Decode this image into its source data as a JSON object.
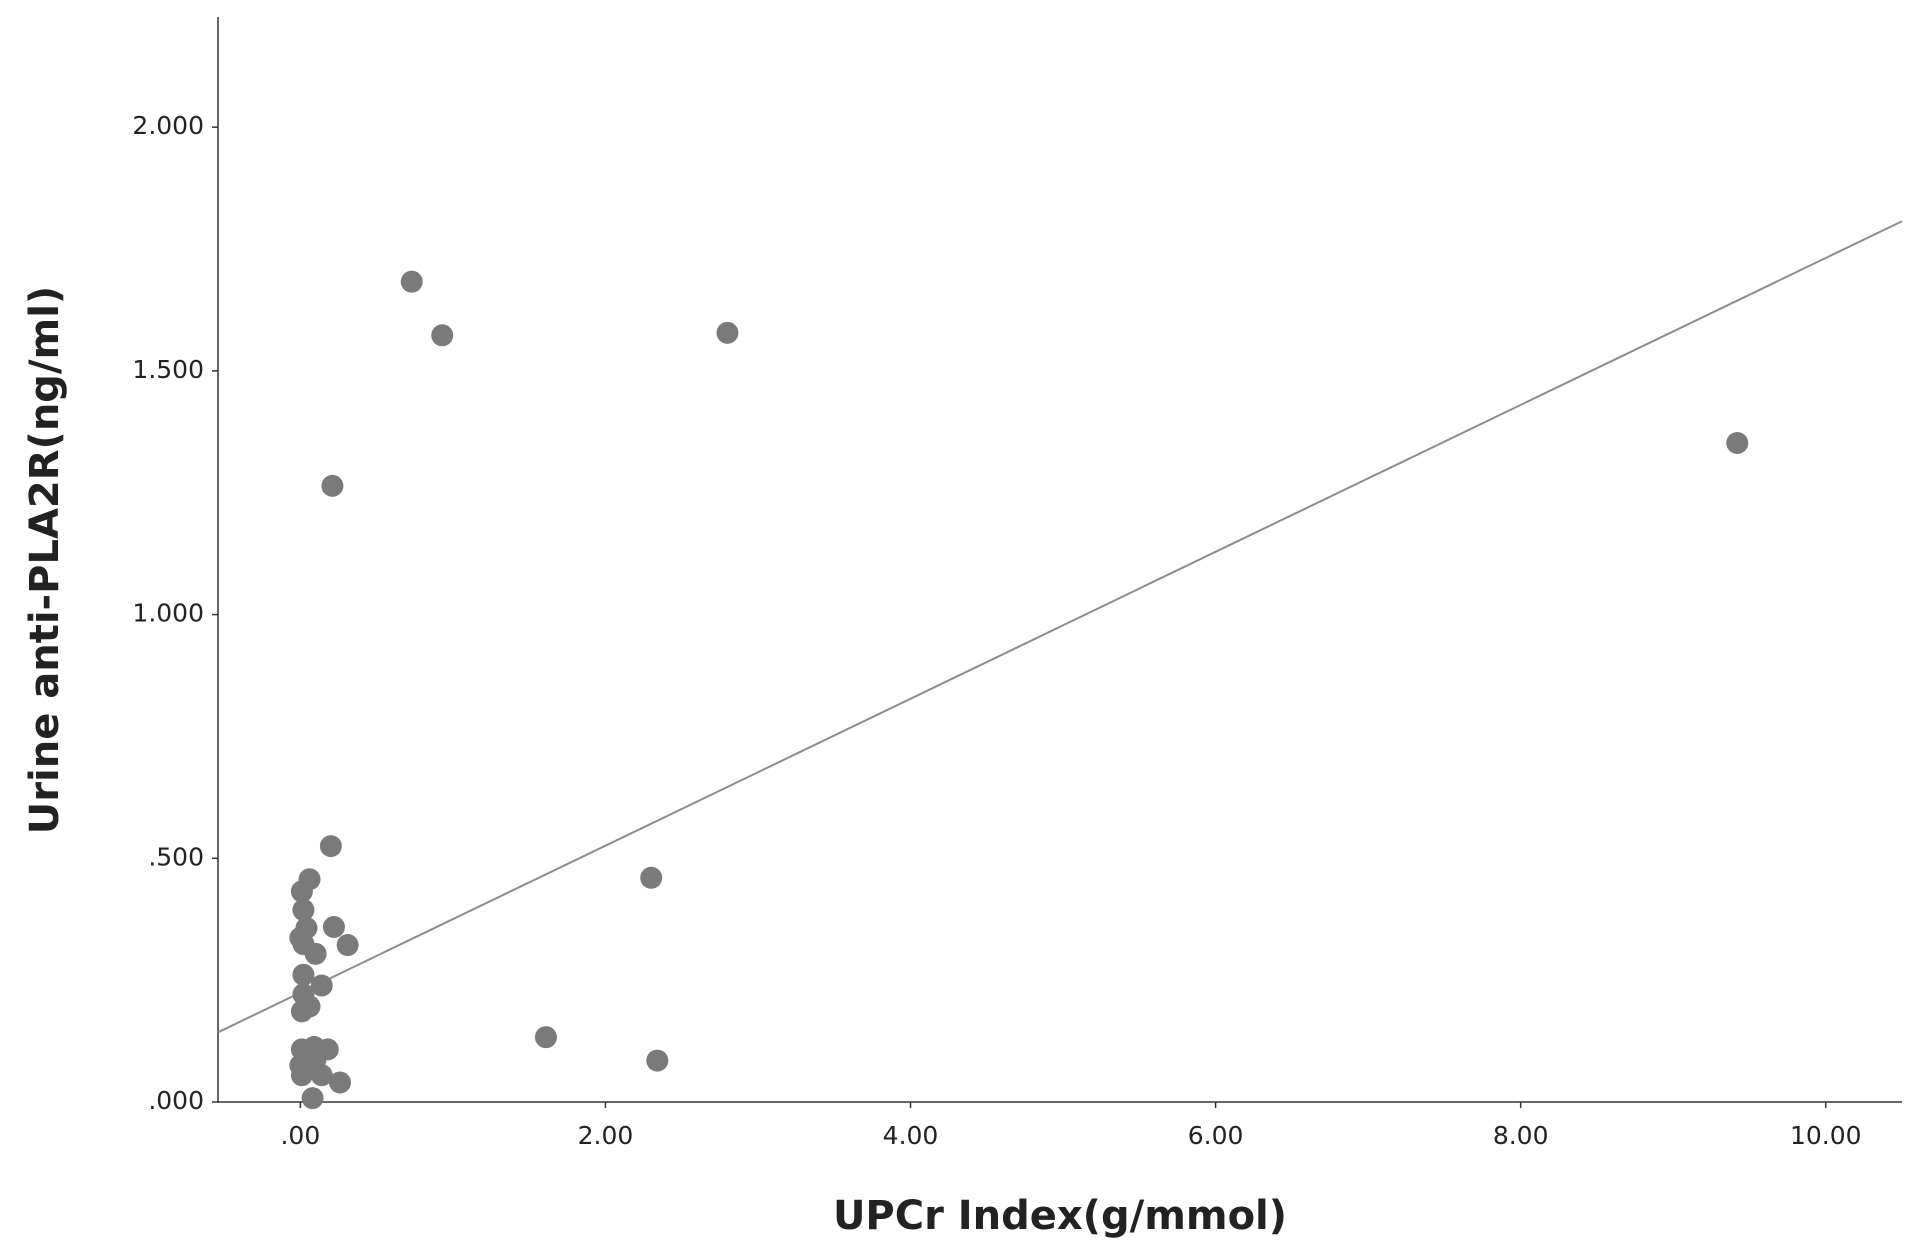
{
  "chart_data": {
    "type": "scatter",
    "x_label": "UPCr Index(g/mmol)",
    "y_label": "Urine anti-PLA2R(ng/ml)",
    "color": "#7a7a7a",
    "fit_color": "#8c8c8c",
    "x": [
      0.73,
      0.93,
      2.8,
      9.42,
      0.21,
      0.2,
      2.3,
      1.61,
      2.34,
      0.06,
      0.01,
      0.02,
      0.22,
      0.04,
      0.31,
      0.0,
      0.1,
      0.02,
      0.14,
      0.02,
      0.02,
      0.06,
      0.01,
      0.18,
      0.09,
      0.01,
      0.04,
      0.01,
      0.14,
      0.26,
      0.08,
      0.1,
      0.0
    ],
    "values": [
      1.683,
      1.573,
      1.578,
      1.352,
      1.264,
      0.525,
      0.46,
      0.133,
      0.085,
      0.457,
      0.432,
      0.394,
      0.359,
      0.357,
      0.322,
      0.337,
      0.304,
      0.324,
      0.239,
      0.261,
      0.221,
      0.196,
      0.186,
      0.108,
      0.113,
      0.108,
      0.08,
      0.055,
      0.055,
      0.04,
      0.008,
      0.088,
      0.075
    ],
    "fit_line": {
      "x": [
        -0.54,
        10.5
      ],
      "values": [
        0.143,
        1.807
      ]
    },
    "xlim": [
      -0.54,
      10.5
    ],
    "ylim": [
      0,
      2.226
    ],
    "xticks": [
      {
        "value": 0,
        "label": ".00"
      },
      {
        "value": 2,
        "label": "2.00"
      },
      {
        "value": 4,
        "label": "4.00"
      },
      {
        "value": 6,
        "label": "6.00"
      },
      {
        "value": 8,
        "label": "8.00"
      },
      {
        "value": 10,
        "label": "10.00"
      }
    ],
    "yticks": [
      {
        "value": 0,
        "label": ".000"
      },
      {
        "value": 0.5,
        "label": ".500"
      },
      {
        "value": 1,
        "label": "1.000"
      },
      {
        "value": 1.5,
        "label": "1.500"
      },
      {
        "value": 2,
        "label": "2.000"
      }
    ]
  }
}
